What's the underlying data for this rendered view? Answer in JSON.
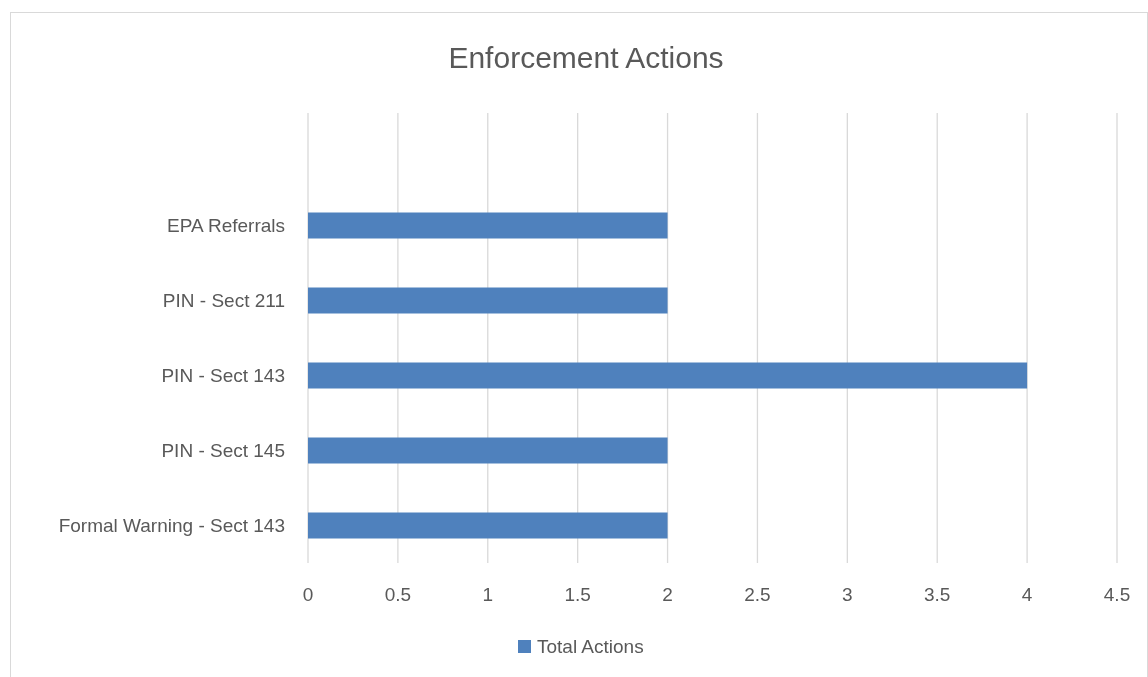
{
  "chart_data": {
    "type": "bar",
    "orientation": "horizontal",
    "title": "Enforcement Actions",
    "categories": [
      "EPA Referrals",
      "PIN - Sect 211",
      "PIN - Sect 143",
      "PIN - Sect 145",
      "Formal Warning - Sect 143"
    ],
    "series": [
      {
        "name": "Total Actions",
        "color": "#4f81bd",
        "values": [
          2,
          2,
          4,
          2,
          2
        ]
      }
    ],
    "xlim": [
      0,
      4.5
    ],
    "xticks": [
      0,
      0.5,
      1,
      1.5,
      2,
      2.5,
      3,
      3.5,
      4,
      4.5
    ],
    "grid": "x",
    "legend": "bottom"
  }
}
